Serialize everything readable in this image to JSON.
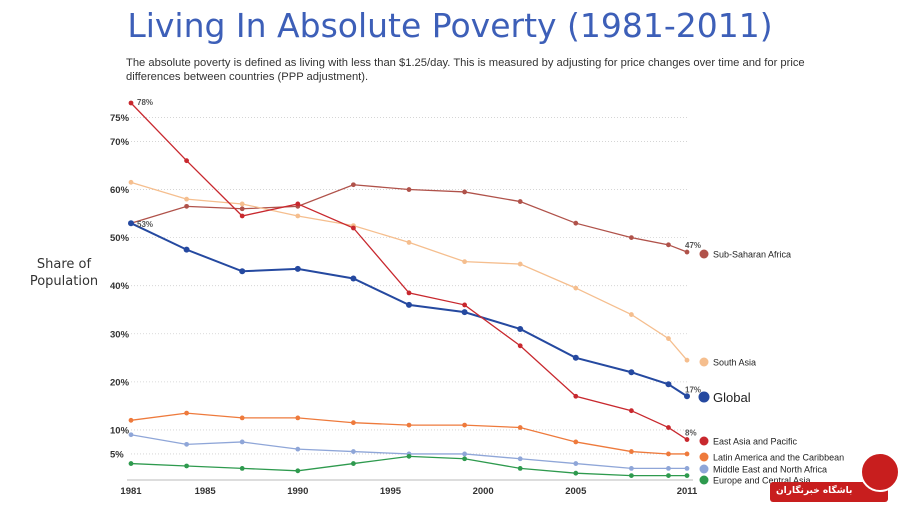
{
  "header": {
    "title": "Living In Absolute Poverty (1981-2011)",
    "subtitle": "The absolute poverty is defined as living with less than $1.25/day. This is measured by adjusting for price changes over time and for price differences between countries (PPP adjustment)."
  },
  "chart_data": {
    "type": "line",
    "ylabel": "Share of Population",
    "xlim": [
      1981,
      2011
    ],
    "ylim": [
      0,
      78
    ],
    "xticks": [
      "1981",
      "1985",
      "1990",
      "1995",
      "2000",
      "2005",
      "2011"
    ],
    "yticks": [
      {
        "value": 5,
        "label": "5%"
      },
      {
        "value": 10,
        "label": "10%"
      },
      {
        "value": 20,
        "label": "20%"
      },
      {
        "value": 30,
        "label": "30%"
      },
      {
        "value": 40,
        "label": "40%"
      },
      {
        "value": 50,
        "label": "50%"
      },
      {
        "value": 60,
        "label": "60%"
      },
      {
        "value": 70,
        "label": "70%"
      },
      {
        "value": 75,
        "label": "75%"
      }
    ],
    "grid": true,
    "legend_placement": "right",
    "x": [
      1981,
      1984,
      1987,
      1990,
      1993,
      1996,
      1999,
      2002,
      2005,
      2008,
      2010,
      2011
    ],
    "series": [
      {
        "name": "Sub-Saharan Africa",
        "color": "#b0524a",
        "values": [
          53,
          56.5,
          56,
          56.5,
          61,
          60,
          59.5,
          57.5,
          53,
          50,
          48.5,
          47
        ]
      },
      {
        "name": "South Asia",
        "color": "#f5be8e",
        "values": [
          61.5,
          58,
          57,
          54.5,
          52.5,
          49,
          45,
          44.5,
          39.5,
          34,
          29,
          24.5
        ]
      },
      {
        "name": "Global",
        "color": "#2549a0",
        "values": [
          53,
          47.5,
          43,
          43.5,
          41.5,
          36,
          34.5,
          31,
          25,
          22,
          19.5,
          17
        ]
      },
      {
        "name": "East Asia and Pacific",
        "color": "#c8282e",
        "values": [
          78,
          66,
          54.5,
          57,
          52,
          38.5,
          36,
          27.5,
          17,
          14,
          10.5,
          8
        ]
      },
      {
        "name": "Latin America and the Caribbean",
        "color": "#ee7a3c",
        "values": [
          12,
          13.5,
          12.5,
          12.5,
          11.5,
          11,
          11,
          10.5,
          7.5,
          5.5,
          5,
          5
        ]
      },
      {
        "name": "Middle East and North Africa",
        "color": "#8fa6d8",
        "values": [
          9,
          7,
          7.5,
          6,
          5.5,
          5,
          5,
          4,
          3,
          2,
          2,
          2
        ]
      },
      {
        "name": "Europe and Central Asia",
        "color": "#2e9a4e",
        "values": [
          3,
          2.5,
          2,
          1.5,
          3,
          4.5,
          4,
          2,
          1,
          0.5,
          0.5,
          0.5
        ]
      }
    ],
    "annotations": [
      {
        "series": "East Asia and Pacific",
        "x": 1981,
        "y": 78,
        "text": "78%"
      },
      {
        "series": "Global",
        "x": 1981,
        "y": 53,
        "text": "53%"
      },
      {
        "series": "Sub-Saharan Africa",
        "x": 2011,
        "y": 47,
        "text": "47%"
      },
      {
        "series": "Global",
        "x": 2011,
        "y": 17,
        "text": "17%"
      },
      {
        "series": "East Asia and Pacific",
        "x": 2011,
        "y": 8,
        "text": "8%"
      }
    ]
  },
  "watermark": {
    "text": "باشگاه خبرنگاران"
  }
}
